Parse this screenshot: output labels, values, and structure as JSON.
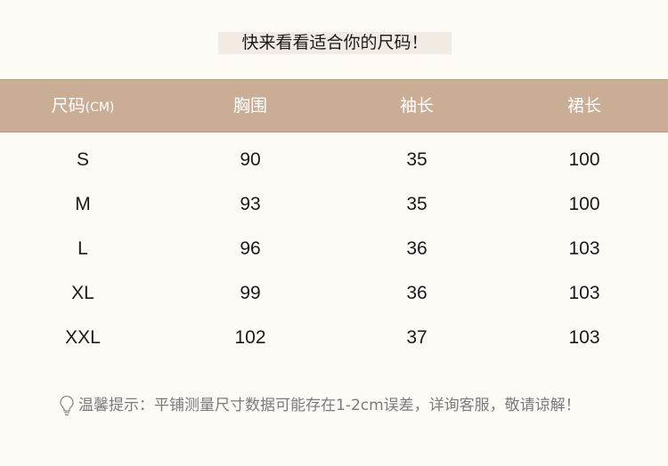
{
  "title": "快来看看适合你的尺码！",
  "header": {
    "columns": [
      "尺码",
      "胸围",
      "袖长",
      "裙长"
    ],
    "unit": "(CM)"
  },
  "rows": [
    [
      "S",
      "90",
      "35",
      "100"
    ],
    [
      "M",
      "93",
      "35",
      "100"
    ],
    [
      "L",
      "96",
      "36",
      "103"
    ],
    [
      "XL",
      "99",
      "36",
      "103"
    ],
    [
      "XXL",
      "102",
      "37",
      "103"
    ]
  ],
  "tip": {
    "icon": "lightbulb-icon",
    "text": "温馨提示：平铺测量尺寸数据可能存在1-2cm误差，详询客服，敬请谅解！"
  },
  "colors": {
    "background": "#fefaf6",
    "header": "#c9ae95",
    "title_box": "#f2ebe4"
  }
}
